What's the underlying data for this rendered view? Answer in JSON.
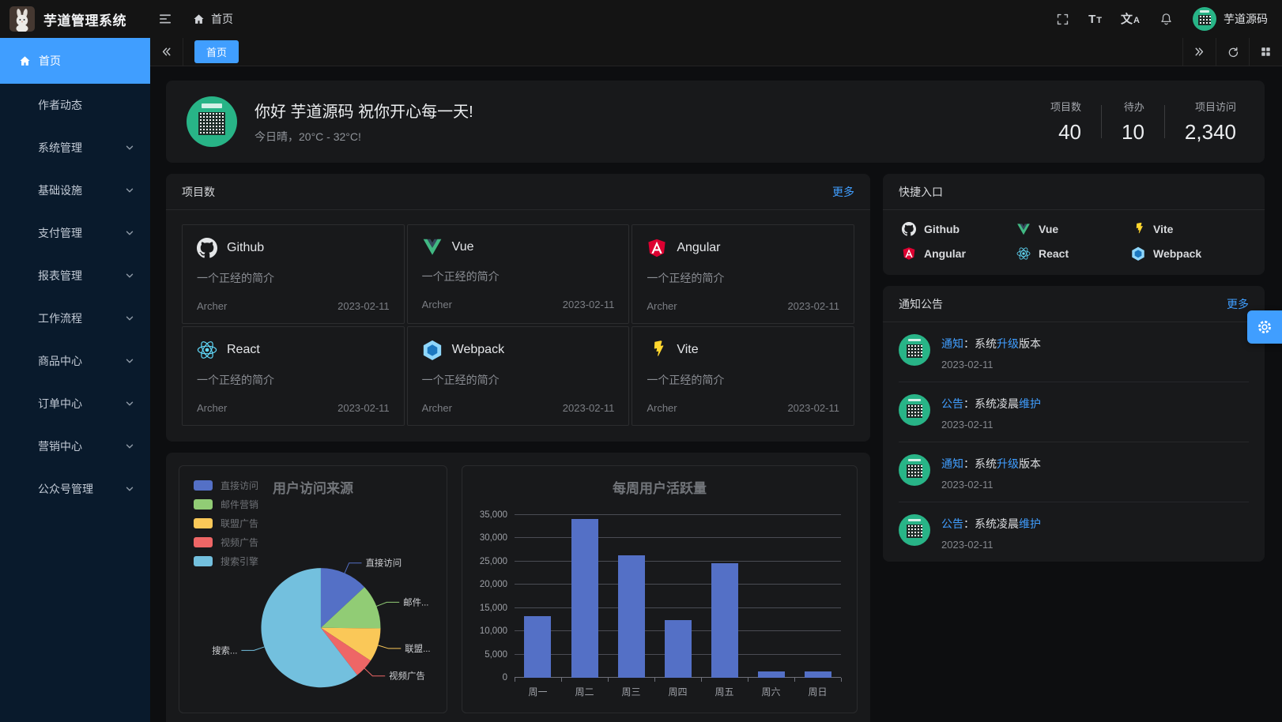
{
  "colors": {
    "accent": "#409eff",
    "sidebar_bg": "#091a2c",
    "header_bg": "#141414",
    "content_bg": "#0d0e10",
    "card_bg": "#18191b",
    "avatar_green": "#28b487",
    "bar_color": "#5470c6"
  },
  "header": {
    "app_title": "芋道管理系统",
    "breadcrumb": "首页",
    "username": "芋道源码"
  },
  "icons": {
    "font_size_primary": "T",
    "font_size_secondary": "T",
    "language_primary": "文",
    "language_secondary": "A"
  },
  "tabbar": {
    "active_tab": "首页"
  },
  "sidebar": {
    "items": [
      {
        "label": "首页",
        "active": true,
        "expandable": false
      },
      {
        "label": "作者动态",
        "active": false,
        "expandable": false
      },
      {
        "label": "系统管理",
        "active": false,
        "expandable": true
      },
      {
        "label": "基础设施",
        "active": false,
        "expandable": true
      },
      {
        "label": "支付管理",
        "active": false,
        "expandable": true
      },
      {
        "label": "报表管理",
        "active": false,
        "expandable": true
      },
      {
        "label": "工作流程",
        "active": false,
        "expandable": true
      },
      {
        "label": "商品中心",
        "active": false,
        "expandable": true
      },
      {
        "label": "订单中心",
        "active": false,
        "expandable": true
      },
      {
        "label": "营销中心",
        "active": false,
        "expandable": true
      },
      {
        "label": "公众号管理",
        "active": false,
        "expandable": true
      }
    ]
  },
  "welcome": {
    "greeting": "你好 芋道源码 祝你开心每一天!",
    "weather": "今日晴，20°C - 32°C!"
  },
  "stats": [
    {
      "label": "项目数",
      "value": "40"
    },
    {
      "label": "待办",
      "value": "10"
    },
    {
      "label": "项目访问",
      "value": "2,340"
    }
  ],
  "projects": {
    "title": "项目数",
    "more": "更多",
    "cards": [
      {
        "name": "Github",
        "desc": "一个正经的简介",
        "author": "Archer",
        "date": "2023-02-11"
      },
      {
        "name": "Vue",
        "desc": "一个正经的简介",
        "author": "Archer",
        "date": "2023-02-11"
      },
      {
        "name": "Angular",
        "desc": "一个正经的简介",
        "author": "Archer",
        "date": "2023-02-11"
      },
      {
        "name": "React",
        "desc": "一个正经的简介",
        "author": "Archer",
        "date": "2023-02-11"
      },
      {
        "name": "Webpack",
        "desc": "一个正经的简介",
        "author": "Archer",
        "date": "2023-02-11"
      },
      {
        "name": "Vite",
        "desc": "一个正经的简介",
        "author": "Archer",
        "date": "2023-02-11"
      }
    ]
  },
  "shortcuts": {
    "title": "快捷入口",
    "items": [
      {
        "label": "Github"
      },
      {
        "label": "Vue"
      },
      {
        "label": "Vite"
      },
      {
        "label": "Angular"
      },
      {
        "label": "React"
      },
      {
        "label": "Webpack"
      }
    ]
  },
  "notices": {
    "title": "通知公告",
    "more": "更多",
    "items": [
      {
        "date": "2023-02-11",
        "segments": [
          {
            "text": "通知",
            "highlight": true
          },
          {
            "text": "：系统",
            "highlight": false
          },
          {
            "text": "升级",
            "highlight": true
          },
          {
            "text": "版本",
            "highlight": false
          }
        ]
      },
      {
        "date": "2023-02-11",
        "segments": [
          {
            "text": "公告",
            "highlight": true
          },
          {
            "text": "：系统凌晨",
            "highlight": false
          },
          {
            "text": "维护",
            "highlight": true
          }
        ]
      },
      {
        "date": "2023-02-11",
        "segments": [
          {
            "text": "通知",
            "highlight": true
          },
          {
            "text": "：系统",
            "highlight": false
          },
          {
            "text": "升级",
            "highlight": true
          },
          {
            "text": "版本",
            "highlight": false
          }
        ]
      },
      {
        "date": "2023-02-11",
        "segments": [
          {
            "text": "公告",
            "highlight": true
          },
          {
            "text": "：系统凌晨",
            "highlight": false
          },
          {
            "text": "维护",
            "highlight": true
          }
        ]
      }
    ]
  },
  "chart_data": [
    {
      "type": "pie",
      "title": "用户访问来源",
      "legend_position": "left",
      "labels": [
        "直接访问",
        "邮件营销",
        "联盟广告",
        "视频广告",
        "搜索引擎"
      ],
      "display_labels": [
        "直接访问",
        "邮件...",
        "联盟...",
        "视频广告",
        "搜索..."
      ],
      "values": [
        335,
        310,
        234,
        135,
        1548
      ],
      "percents": [
        13.1,
        12.1,
        9.1,
        5.3,
        60.4
      ],
      "colors": [
        "#5470c6",
        "#91cc75",
        "#fac858",
        "#ee6666",
        "#73c0de"
      ]
    },
    {
      "type": "bar",
      "title": "每周用户活跃量",
      "categories": [
        "周一",
        "周二",
        "周三",
        "周四",
        "周五",
        "周六",
        "周日"
      ],
      "values": [
        13300,
        34200,
        26300,
        12400,
        24700,
        1400,
        1300
      ],
      "ylim": [
        0,
        35000
      ],
      "ytick_step": 5000,
      "ytick_labels": [
        "0",
        "5,000",
        "10,000",
        "15,000",
        "20,000",
        "25,000",
        "30,000",
        "35,000"
      ],
      "bar_color": "#5470c6",
      "grid": true,
      "legend_position": "none"
    }
  ]
}
